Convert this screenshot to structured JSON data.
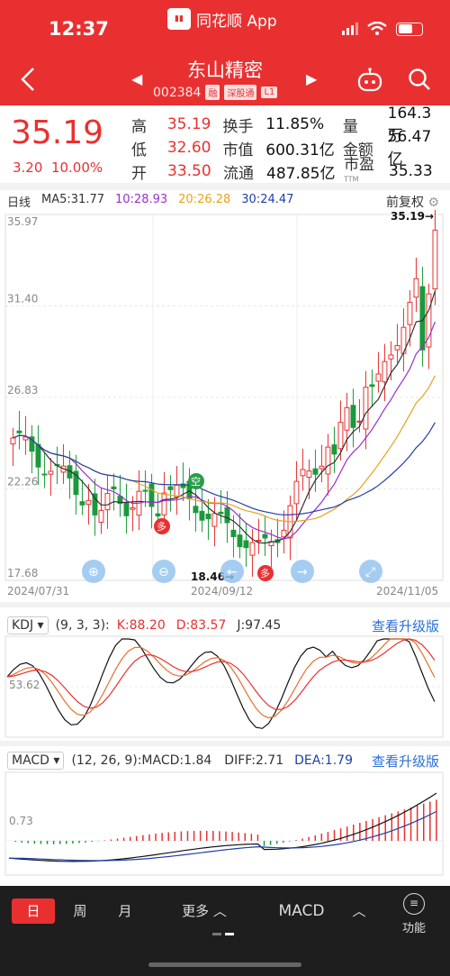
{
  "status": {
    "time": "12:37",
    "app_name": "同花顺 App"
  },
  "stock": {
    "name": "东山精密",
    "code": "002384",
    "tags": [
      "融",
      "深股通",
      "L1"
    ]
  },
  "quote": {
    "price": "35.19",
    "change": "3.20",
    "change_pct": "10.00%",
    "fields": [
      [
        {
          "label": "高",
          "value": "35.19",
          "red": true
        },
        {
          "label": "换手",
          "value": "11.85%"
        },
        {
          "label": "量",
          "value": "164.3万"
        }
      ],
      [
        {
          "label": "低",
          "value": "32.60",
          "red": true
        },
        {
          "label": "市值",
          "value": "600.31亿"
        },
        {
          "label": "金额",
          "value": "56.47亿"
        }
      ],
      [
        {
          "label": "开",
          "value": "33.50",
          "red": true
        },
        {
          "label": "流通",
          "value": "487.85亿"
        },
        {
          "label": "市盈",
          "value": "35.33",
          "sup": "TTM"
        }
      ]
    ]
  },
  "kline": {
    "period_label": "日线",
    "ma": [
      {
        "label": "MA5:31.77",
        "color": "#333333"
      },
      {
        "label": "10:28.93",
        "color": "#9b2fd1"
      },
      {
        "label": "20:26.28",
        "color": "#e8a31a"
      },
      {
        "label": "30:24.47",
        "color": "#1f3fa8"
      }
    ],
    "adjust": "前复权",
    "y_labels": [
      "35.97",
      "31.40",
      "26.83",
      "22.26",
      "17.68"
    ],
    "x_labels": [
      "2024/07/31",
      "2024/09/12",
      "2024/11/05"
    ],
    "high_marker": "35.19",
    "low_marker": "18.46",
    "kong_marker": "空",
    "duo_marker": "多"
  },
  "kdj": {
    "name": "KDJ",
    "params": "(9, 3, 3):",
    "k": "K:88.20",
    "d": "D:83.57",
    "j": "J:97.45",
    "y_label": "53.62",
    "upgrade": "查看升级版"
  },
  "macd": {
    "name": "MACD",
    "params": "(12, 26, 9):MACD:1.84",
    "diff": "DIFF:2.71",
    "dea": "DEA:1.79",
    "y_label": "0.73",
    "upgrade": "查看升级版"
  },
  "bottom": {
    "day": "日",
    "week": "周",
    "month": "月",
    "more": "更多",
    "indicator": "MACD",
    "function": "功能"
  },
  "colors": {
    "up": "#e93030",
    "down": "#1a9a3c",
    "brand": "#e93030",
    "link": "#2b6fd6"
  }
}
